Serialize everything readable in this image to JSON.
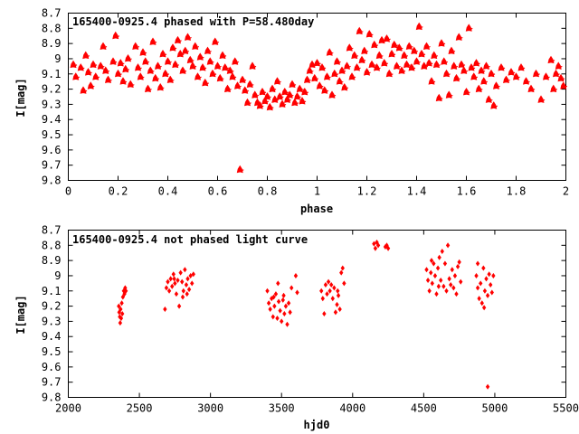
{
  "chart_data": [
    {
      "type": "scatter",
      "title": "165400-0925.4 phased with P=58.480day",
      "xlabel": "phase",
      "ylabel": "I[mag]",
      "xlim": [
        0,
        2
      ],
      "ylim": [
        8.7,
        9.8
      ],
      "y_inverted": true,
      "xticks": [
        0,
        0.2,
        0.4,
        0.6,
        0.8,
        1,
        1.2,
        1.4,
        1.6,
        1.8,
        2
      ],
      "xtick_labels": [
        "0",
        "0.2",
        "0.4",
        "0.6",
        "0.8",
        "1",
        "1.2",
        "1.4",
        "1.6",
        "1.8",
        "2"
      ],
      "yticks": [
        8.7,
        8.8,
        8.9,
        9.0,
        9.1,
        9.2,
        9.3,
        9.4,
        9.5,
        9.6,
        9.7,
        9.8
      ],
      "ytick_labels": [
        "8.7",
        "8.8",
        "8.9",
        "9",
        "9.1",
        "9.2",
        "9.3",
        "9.4",
        "9.5",
        "9.6",
        "9.7",
        "9.8"
      ],
      "marker_color": "#ff0000",
      "grid": false,
      "points": [
        [
          0.02,
          9.04
        ],
        [
          0.03,
          9.12
        ],
        [
          0.05,
          9.06
        ],
        [
          0.06,
          9.21
        ],
        [
          0.07,
          8.98
        ],
        [
          0.08,
          9.09
        ],
        [
          0.09,
          9.18
        ],
        [
          0.1,
          9.04
        ],
        [
          0.11,
          9.12
        ],
        [
          0.13,
          9.05
        ],
        [
          0.14,
          8.92
        ],
        [
          0.15,
          9.08
        ],
        [
          0.16,
          9.14
        ],
        [
          0.18,
          9.02
        ],
        [
          0.19,
          8.85
        ],
        [
          0.2,
          9.1
        ],
        [
          0.21,
          9.03
        ],
        [
          0.22,
          9.15
        ],
        [
          0.23,
          9.07
        ],
        [
          0.24,
          9.0
        ],
        [
          0.25,
          9.17
        ],
        [
          0.27,
          8.92
        ],
        [
          0.28,
          9.06
        ],
        [
          0.29,
          9.12
        ],
        [
          0.3,
          8.96
        ],
        [
          0.31,
          9.02
        ],
        [
          0.32,
          9.2
        ],
        [
          0.33,
          9.08
        ],
        [
          0.34,
          8.89
        ],
        [
          0.35,
          9.13
        ],
        [
          0.36,
          9.05
        ],
        [
          0.37,
          9.19
        ],
        [
          0.38,
          8.97
        ],
        [
          0.39,
          9.1
        ],
        [
          0.4,
          9.02
        ],
        [
          0.41,
          9.14
        ],
        [
          0.42,
          8.93
        ],
        [
          0.43,
          9.04
        ],
        [
          0.44,
          8.88
        ],
        [
          0.45,
          8.97
        ],
        [
          0.46,
          9.08
        ],
        [
          0.47,
          8.95
        ],
        [
          0.48,
          8.86
        ],
        [
          0.49,
          9.01
        ],
        [
          0.5,
          9.05
        ],
        [
          0.51,
          8.92
        ],
        [
          0.52,
          9.12
        ],
        [
          0.53,
          8.99
        ],
        [
          0.54,
          9.06
        ],
        [
          0.55,
          9.16
        ],
        [
          0.56,
          8.95
        ],
        [
          0.57,
          9.02
        ],
        [
          0.58,
          9.1
        ],
        [
          0.59,
          8.89
        ],
        [
          0.6,
          9.05
        ],
        [
          0.61,
          9.13
        ],
        [
          0.62,
          8.98
        ],
        [
          0.63,
          9.06
        ],
        [
          0.64,
          9.2
        ],
        [
          0.65,
          9.08
        ],
        [
          0.66,
          9.12
        ],
        [
          0.67,
          9.02
        ],
        [
          0.68,
          9.18
        ],
        [
          0.69,
          9.73
        ],
        [
          0.7,
          9.14
        ],
        [
          0.71,
          9.21
        ],
        [
          0.72,
          9.29
        ],
        [
          0.73,
          9.17
        ],
        [
          0.74,
          9.05
        ],
        [
          0.75,
          9.24
        ],
        [
          0.76,
          9.29
        ],
        [
          0.77,
          9.31
        ],
        [
          0.78,
          9.22
        ],
        [
          0.79,
          9.28
        ],
        [
          0.8,
          9.25
        ],
        [
          0.81,
          9.32
        ],
        [
          0.82,
          9.2
        ],
        [
          0.83,
          9.27
        ],
        [
          0.84,
          9.15
        ],
        [
          0.85,
          9.25
        ],
        [
          0.86,
          9.3
        ],
        [
          0.87,
          9.22
        ],
        [
          0.88,
          9.27
        ],
        [
          0.89,
          9.24
        ],
        [
          0.9,
          9.17
        ],
        [
          0.91,
          9.29
        ],
        [
          0.92,
          9.25
        ],
        [
          0.93,
          9.2
        ],
        [
          0.94,
          9.28
        ],
        [
          0.95,
          9.22
        ],
        [
          0.96,
          9.14
        ],
        [
          0.97,
          9.08
        ],
        [
          0.98,
          9.04
        ],
        [
          0.99,
          9.13
        ],
        [
          1.0,
          9.03
        ],
        [
          1.01,
          9.18
        ],
        [
          1.02,
          9.06
        ],
        [
          1.03,
          9.21
        ],
        [
          1.04,
          9.12
        ],
        [
          1.05,
          8.96
        ],
        [
          1.06,
          9.24
        ],
        [
          1.07,
          9.1
        ],
        [
          1.08,
          9.02
        ],
        [
          1.09,
          9.15
        ],
        [
          1.1,
          9.08
        ],
        [
          1.11,
          9.19
        ],
        [
          1.12,
          9.05
        ],
        [
          1.13,
          8.93
        ],
        [
          1.14,
          9.12
        ],
        [
          1.15,
          8.98
        ],
        [
          1.16,
          9.06
        ],
        [
          1.17,
          8.82
        ],
        [
          1.18,
          9.01
        ],
        [
          1.19,
          8.95
        ],
        [
          1.2,
          9.09
        ],
        [
          1.21,
          8.84
        ],
        [
          1.22,
          9.04
        ],
        [
          1.23,
          8.91
        ],
        [
          1.24,
          9.06
        ],
        [
          1.25,
          8.98
        ],
        [
          1.26,
          8.88
        ],
        [
          1.27,
          9.03
        ],
        [
          1.28,
          8.87
        ],
        [
          1.29,
          9.1
        ],
        [
          1.3,
          8.97
        ],
        [
          1.31,
          8.91
        ],
        [
          1.32,
          9.05
        ],
        [
          1.33,
          8.93
        ],
        [
          1.34,
          9.08
        ],
        [
          1.35,
          8.98
        ],
        [
          1.36,
          9.04
        ],
        [
          1.37,
          8.92
        ],
        [
          1.38,
          9.06
        ],
        [
          1.39,
          8.95
        ],
        [
          1.4,
          9.02
        ],
        [
          1.41,
          8.79
        ],
        [
          1.42,
          8.97
        ],
        [
          1.43,
          9.05
        ],
        [
          1.44,
          8.92
        ],
        [
          1.45,
          9.03
        ],
        [
          1.46,
          9.15
        ],
        [
          1.47,
          8.98
        ],
        [
          1.48,
          9.04
        ],
        [
          1.49,
          9.26
        ],
        [
          1.5,
          8.9
        ],
        [
          1.51,
          9.02
        ],
        [
          1.52,
          9.1
        ],
        [
          1.53,
          9.24
        ],
        [
          1.54,
          8.95
        ],
        [
          1.55,
          9.05
        ],
        [
          1.56,
          9.13
        ],
        [
          1.57,
          8.86
        ],
        [
          1.58,
          9.04
        ],
        [
          1.59,
          9.08
        ],
        [
          1.6,
          9.22
        ],
        [
          1.61,
          8.8
        ],
        [
          1.62,
          9.06
        ],
        [
          1.63,
          9.12
        ],
        [
          1.64,
          9.03
        ],
        [
          1.65,
          9.2
        ],
        [
          1.66,
          9.08
        ],
        [
          1.67,
          9.15
        ],
        [
          1.68,
          9.05
        ],
        [
          1.69,
          9.27
        ],
        [
          1.7,
          9.1
        ],
        [
          1.71,
          9.31
        ],
        [
          1.72,
          9.18
        ],
        [
          1.74,
          9.06
        ],
        [
          1.76,
          9.14
        ],
        [
          1.78,
          9.09
        ],
        [
          1.8,
          9.12
        ],
        [
          1.82,
          9.06
        ],
        [
          1.84,
          9.15
        ],
        [
          1.86,
          9.2
        ],
        [
          1.88,
          9.1
        ],
        [
          1.9,
          9.27
        ],
        [
          1.92,
          9.12
        ],
        [
          1.94,
          9.01
        ],
        [
          1.95,
          9.2
        ],
        [
          1.96,
          9.1
        ],
        [
          1.97,
          9.05
        ],
        [
          1.98,
          9.13
        ],
        [
          1.99,
          9.18
        ]
      ]
    },
    {
      "type": "scatter",
      "title": "165400-0925.4 not phased light curve",
      "xlabel": "hjd0",
      "ylabel": "I[mag]",
      "xlim": [
        2000,
        5500
      ],
      "ylim": [
        8.7,
        9.8
      ],
      "y_inverted": true,
      "xticks": [
        2000,
        2500,
        3000,
        3500,
        4000,
        4500,
        5000,
        5500
      ],
      "xtick_labels": [
        "2000",
        "2500",
        "3000",
        "3500",
        "4000",
        "4500",
        "5000",
        "5500"
      ],
      "yticks": [
        8.7,
        8.8,
        8.9,
        9.0,
        9.1,
        9.2,
        9.3,
        9.4,
        9.5,
        9.6,
        9.7,
        9.8
      ],
      "ytick_labels": [
        "8.7",
        "8.8",
        "8.9",
        "9",
        "9.1",
        "9.2",
        "9.3",
        "9.4",
        "9.5",
        "9.6",
        "9.7",
        "9.8"
      ],
      "marker_color": "#ff0000",
      "grid": false,
      "points": [
        [
          2355,
          9.2
        ],
        [
          2358,
          9.24
        ],
        [
          2362,
          9.27
        ],
        [
          2365,
          9.31
        ],
        [
          2368,
          9.22
        ],
        [
          2372,
          9.28
        ],
        [
          2376,
          9.18
        ],
        [
          2380,
          9.25
        ],
        [
          2384,
          9.14
        ],
        [
          2390,
          9.1
        ],
        [
          2395,
          9.12
        ],
        [
          2400,
          9.08
        ],
        [
          2405,
          9.1
        ],
        [
          2680,
          9.22
        ],
        [
          2690,
          9.08
        ],
        [
          2700,
          9.04
        ],
        [
          2710,
          9.1
        ],
        [
          2720,
          9.02
        ],
        [
          2730,
          9.07
        ],
        [
          2740,
          8.99
        ],
        [
          2750,
          9.05
        ],
        [
          2760,
          9.12
        ],
        [
          2770,
          9.03
        ],
        [
          2780,
          9.2
        ],
        [
          2790,
          8.98
        ],
        [
          2800,
          9.04
        ],
        [
          2810,
          9.1
        ],
        [
          2820,
          8.96
        ],
        [
          2830,
          9.06
        ],
        [
          2840,
          9.02
        ],
        [
          2850,
          9.09
        ],
        [
          2860,
          9.0
        ],
        [
          2870,
          9.05
        ],
        [
          2880,
          8.99
        ],
        [
          2745,
          9.02
        ],
        [
          2805,
          9.14
        ],
        [
          2835,
          9.12
        ],
        [
          3400,
          9.1
        ],
        [
          3410,
          9.18
        ],
        [
          3420,
          9.22
        ],
        [
          3430,
          9.15
        ],
        [
          3440,
          9.27
        ],
        [
          3450,
          9.2
        ],
        [
          3460,
          9.12
        ],
        [
          3470,
          9.28
        ],
        [
          3480,
          9.17
        ],
        [
          3490,
          9.23
        ],
        [
          3500,
          9.3
        ],
        [
          3510,
          9.16
        ],
        [
          3520,
          9.25
        ],
        [
          3530,
          9.2
        ],
        [
          3540,
          9.32
        ],
        [
          3550,
          9.18
        ],
        [
          3560,
          9.24
        ],
        [
          3570,
          9.08
        ],
        [
          3475,
          9.05
        ],
        [
          3515,
          9.13
        ],
        [
          3600,
          9.0
        ],
        [
          3610,
          9.11
        ],
        [
          3445,
          9.14
        ],
        [
          3780,
          9.1
        ],
        [
          3790,
          9.15
        ],
        [
          3800,
          9.25
        ],
        [
          3810,
          9.06
        ],
        [
          3820,
          9.12
        ],
        [
          3830,
          9.04
        ],
        [
          3840,
          9.1
        ],
        [
          3850,
          9.06
        ],
        [
          3860,
          9.15
        ],
        [
          3870,
          9.08
        ],
        [
          3880,
          9.24
        ],
        [
          3890,
          9.19
        ],
        [
          3900,
          9.13
        ],
        [
          3910,
          9.22
        ],
        [
          3920,
          8.98
        ],
        [
          3930,
          8.95
        ],
        [
          3940,
          9.05
        ],
        [
          3895,
          9.1
        ],
        [
          4150,
          8.79
        ],
        [
          4160,
          8.82
        ],
        [
          4170,
          8.78
        ],
        [
          4180,
          8.8
        ],
        [
          4230,
          8.81
        ],
        [
          4240,
          8.8
        ],
        [
          4250,
          8.82
        ],
        [
          4520,
          8.96
        ],
        [
          4530,
          9.03
        ],
        [
          4540,
          9.1
        ],
        [
          4550,
          8.98
        ],
        [
          4560,
          9.05
        ],
        [
          4570,
          8.92
        ],
        [
          4580,
          9.0
        ],
        [
          4590,
          9.12
        ],
        [
          4600,
          8.95
        ],
        [
          4610,
          8.88
        ],
        [
          4620,
          9.03
        ],
        [
          4630,
          8.84
        ],
        [
          4640,
          9.07
        ],
        [
          4650,
          8.92
        ],
        [
          4660,
          9.1
        ],
        [
          4670,
          8.8
        ],
        [
          4680,
          9.02
        ],
        [
          4690,
          9.06
        ],
        [
          4700,
          8.96
        ],
        [
          4710,
          9.08
        ],
        [
          4720,
          9.0
        ],
        [
          4730,
          9.12
        ],
        [
          4740,
          8.94
        ],
        [
          4750,
          8.91
        ],
        [
          4760,
          9.04
        ],
        [
          4555,
          8.9
        ],
        [
          4605,
          9.07
        ],
        [
          4870,
          9.0
        ],
        [
          4880,
          9.08
        ],
        [
          4890,
          9.15
        ],
        [
          4900,
          9.05
        ],
        [
          4910,
          9.18
        ],
        [
          4920,
          8.95
        ],
        [
          4930,
          9.1
        ],
        [
          4940,
          9.02
        ],
        [
          4950,
          9.13
        ],
        [
          4960,
          8.99
        ],
        [
          4970,
          9.06
        ],
        [
          4980,
          9.11
        ],
        [
          4990,
          9.0
        ],
        [
          4950,
          9.73
        ],
        [
          4880,
          8.92
        ],
        [
          4925,
          9.21
        ]
      ]
    }
  ]
}
